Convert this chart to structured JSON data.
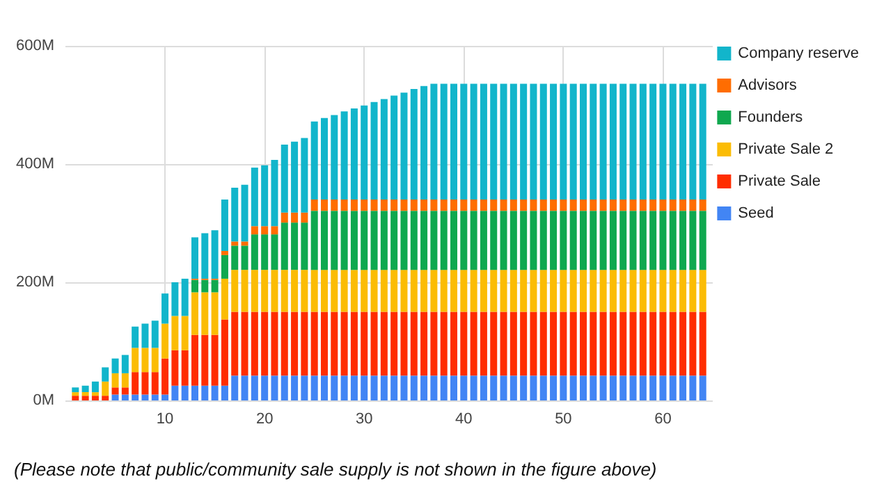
{
  "chart_data": {
    "type": "bar",
    "stacked": true,
    "x": [
      1,
      2,
      3,
      4,
      5,
      6,
      7,
      8,
      9,
      10,
      11,
      12,
      13,
      14,
      15,
      16,
      17,
      18,
      19,
      20,
      21,
      22,
      23,
      24,
      25,
      26,
      27,
      28,
      29,
      30,
      31,
      32,
      33,
      34,
      35,
      36,
      37,
      38,
      39,
      40,
      41,
      42,
      43,
      44,
      45,
      46,
      47,
      48,
      49,
      50,
      51,
      52,
      53,
      54,
      55,
      56,
      57,
      58,
      59,
      60,
      61,
      62,
      63,
      64
    ],
    "series": [
      {
        "name": "Seed",
        "color": "#4285f4",
        "values": [
          0,
          0,
          0,
          0,
          10,
          10,
          10,
          10,
          10,
          10,
          25,
          25,
          25,
          25,
          25,
          25,
          42,
          42,
          42,
          42,
          42,
          42,
          42,
          42,
          42,
          42,
          42,
          42,
          42,
          42,
          42,
          42,
          42,
          42,
          42,
          42,
          42,
          42,
          42,
          42,
          42,
          42,
          42,
          42,
          42,
          42,
          42,
          42,
          42,
          42,
          42,
          42,
          42,
          42,
          42,
          42,
          42,
          42,
          42,
          42,
          42,
          42,
          42,
          42
        ]
      },
      {
        "name": "Private Sale",
        "color": "#ff2d00",
        "values": [
          8,
          8,
          8,
          8,
          12,
          12,
          38,
          38,
          38,
          61,
          60,
          60,
          86,
          86,
          86,
          112,
          108,
          108,
          108,
          108,
          108,
          108,
          108,
          108,
          108,
          108,
          108,
          108,
          108,
          108,
          108,
          108,
          108,
          108,
          108,
          108,
          108,
          108,
          108,
          108,
          108,
          108,
          108,
          108,
          108,
          108,
          108,
          108,
          108,
          108,
          108,
          108,
          108,
          108,
          108,
          108,
          108,
          108,
          108,
          108,
          108,
          108,
          108,
          108
        ]
      },
      {
        "name": "Private Sale 2",
        "color": "#fbbc04",
        "values": [
          6,
          6,
          6,
          24,
          24,
          24,
          41,
          41,
          41,
          59,
          58,
          58,
          72,
          72,
          72,
          69,
          71,
          71,
          71,
          71,
          71,
          71,
          71,
          71,
          71,
          71,
          71,
          71,
          71,
          71,
          71,
          71,
          71,
          71,
          71,
          71,
          71,
          71,
          71,
          71,
          71,
          71,
          71,
          71,
          71,
          71,
          71,
          71,
          71,
          71,
          71,
          71,
          71,
          71,
          71,
          71,
          71,
          71,
          71,
          71,
          71,
          71,
          71,
          71
        ]
      },
      {
        "name": "Founders",
        "color": "#0fa84f",
        "values": [
          0,
          0,
          0,
          0,
          0,
          0,
          0,
          0,
          0,
          0,
          0,
          0,
          21,
          21,
          21,
          40,
          41,
          41,
          60,
          60,
          60,
          80,
          80,
          80,
          100,
          100,
          100,
          100,
          100,
          100,
          100,
          100,
          100,
          100,
          100,
          100,
          100,
          100,
          100,
          100,
          100,
          100,
          100,
          100,
          100,
          100,
          100,
          100,
          100,
          100,
          100,
          100,
          100,
          100,
          100,
          100,
          100,
          100,
          100,
          100,
          100,
          100,
          100,
          100
        ]
      },
      {
        "name": "Advisors",
        "color": "#ff6d01",
        "values": [
          0,
          0,
          0,
          0,
          0,
          0,
          0,
          0,
          0,
          0,
          0,
          0,
          2,
          2,
          2,
          7,
          7,
          7,
          14,
          14,
          14,
          17,
          17,
          17,
          19,
          19,
          19,
          19,
          19,
          19,
          19,
          19,
          19,
          19,
          19,
          19,
          19,
          19,
          19,
          19,
          19,
          19,
          19,
          19,
          19,
          19,
          19,
          19,
          19,
          19,
          19,
          19,
          19,
          19,
          19,
          19,
          19,
          19,
          19,
          19,
          19,
          19,
          19,
          19
        ]
      },
      {
        "name": "Company reserve",
        "color": "#12b5cb",
        "values": [
          8,
          11,
          18,
          24,
          25,
          31,
          36,
          41,
          46,
          51,
          57,
          63,
          70,
          77,
          82,
          87,
          91,
          96,
          99,
          103,
          112,
          115,
          120,
          126,
          132,
          138,
          143,
          149,
          154,
          159,
          165,
          170,
          176,
          181,
          187,
          192,
          196,
          196,
          196,
          196,
          196,
          196,
          196,
          196,
          196,
          196,
          196,
          196,
          196,
          196,
          196,
          196,
          196,
          196,
          196,
          196,
          196,
          196,
          196,
          196,
          196,
          196,
          196,
          196
        ]
      }
    ],
    "xlim": [
      0,
      65
    ],
    "xticks": [
      10,
      20,
      30,
      40,
      50,
      60
    ],
    "ylim": [
      0,
      600
    ],
    "yticks": [
      {
        "value": 0,
        "label": "0M"
      },
      {
        "value": 200,
        "label": "200M"
      },
      {
        "value": 400,
        "label": "400M"
      },
      {
        "value": 600,
        "label": "600M"
      }
    ],
    "grid": true,
    "legend": "right",
    "annotations": [
      "(Please note that public/community sale supply is not shown in the figure above)"
    ]
  }
}
